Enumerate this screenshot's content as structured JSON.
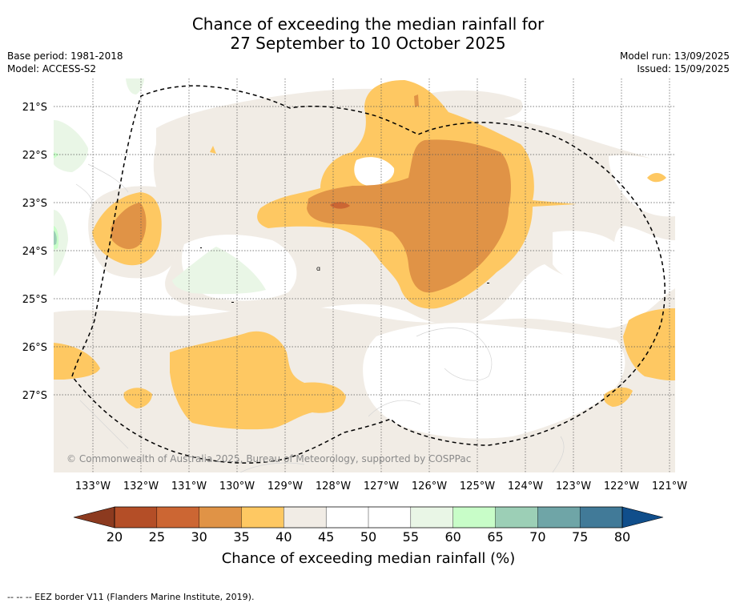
{
  "header": {
    "title_line1": "Chance of exceeding the median rainfall for",
    "title_line2": "27 September to 10 October 2025",
    "base_period": "Base period: 1981-2018",
    "model": "Model: ACCESS-S2",
    "model_run": "Model run: 13/09/2025",
    "issued": "Issued: 15/09/2025"
  },
  "map": {
    "longitudes": [
      "133°W",
      "132°W",
      "131°W",
      "130°W",
      "129°W",
      "128°W",
      "127°W",
      "126°W",
      "125°W",
      "124°W",
      "123°W",
      "122°W",
      "121°W"
    ],
    "latitudes": [
      "21°S",
      "22°S",
      "23°S",
      "24°S",
      "25°S",
      "26°S",
      "27°S"
    ],
    "copyright": "© Commonwealth of Australia 2025, Bureau of Meteorology, supported by COSPPac",
    "colors": {
      "c20_25": "#b44e27",
      "c25_30": "#cc6633",
      "c30_35": "#e09346",
      "c35_40": "#fec862",
      "c40_45": "#f1ece5",
      "c45_55": "#ffffff",
      "c55_60": "#e9f6e6",
      "c60_65": "#c8fdc8",
      "c65_70": "#9ccfb6",
      "grid": "#555555",
      "eez": "#000000"
    }
  },
  "colorbar": {
    "ticks": [
      "20",
      "25",
      "30",
      "35",
      "40",
      "45",
      "50",
      "55",
      "60",
      "65",
      "70",
      "75",
      "80"
    ],
    "colors": [
      "#b44e27",
      "#cc6633",
      "#e09346",
      "#fec862",
      "#f1ece5",
      "#ffffff",
      "#ffffff",
      "#e9f6e6",
      "#c8fdc8",
      "#9ccfb6",
      "#6fa5a7",
      "#417a98"
    ],
    "under_color": "#8c3a1f",
    "over_color": "#104e8b",
    "label": "Chance of exceeding median rainfall (%)"
  },
  "footnote": "--  --  -- EEZ border V11 (Flanders Marine Institute, 2019)."
}
